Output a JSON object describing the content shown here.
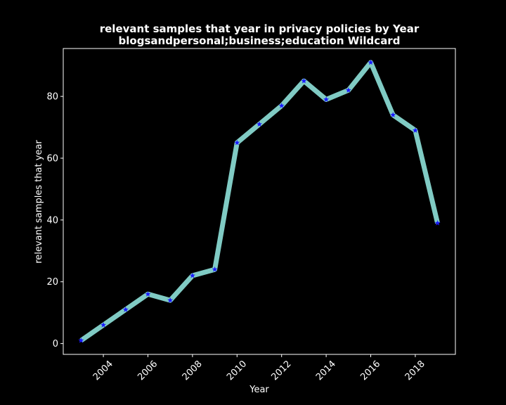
{
  "chart_data": {
    "type": "line",
    "title": "relevant samples that year in privacy policies by Year",
    "subtitle": "blogsandpersonal;business;education Wildcard",
    "xlabel": "Year",
    "ylabel": "relevant samples that year",
    "x": [
      2003,
      2004,
      2005,
      2006,
      2007,
      2008,
      2009,
      2010,
      2011,
      2012,
      2013,
      2014,
      2015,
      2016,
      2017,
      2018,
      2019
    ],
    "series": [
      {
        "values": [
          1,
          6,
          11,
          16,
          14,
          22,
          24,
          65,
          71,
          77,
          85,
          79,
          82,
          91,
          74,
          69,
          39
        ]
      }
    ],
    "xlim": [
      2002.2,
      2019.8
    ],
    "ylim": [
      -3.5,
      95.5
    ],
    "xticks": [
      "2004",
      "2006",
      "2008",
      "2010",
      "2012",
      "2014",
      "2016",
      "2018"
    ],
    "yticks": [
      "0",
      "20",
      "40",
      "60",
      "80"
    ],
    "grid": false,
    "line_color": "#80cbc4",
    "marker_color": "#1a1aff",
    "marker": "star",
    "background": "#000000",
    "axes_color": "#ffffff"
  }
}
